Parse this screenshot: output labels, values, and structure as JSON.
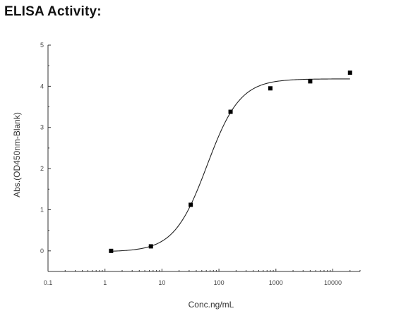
{
  "heading": "ELISA Activity:",
  "chart_data": {
    "type": "scatter",
    "title": "",
    "xlabel": "Conc.ng/mL",
    "ylabel": "Abs.(OD450nm-Blank)",
    "x_scale": "log",
    "xlim": [
      0.1,
      30000
    ],
    "ylim": [
      -0.5,
      5
    ],
    "x_ticks": [
      0.1,
      1,
      10,
      100,
      1000,
      10000
    ],
    "x_tick_labels": [
      "0.1",
      "1",
      "10",
      "100",
      "1000",
      "10000"
    ],
    "y_ticks": [
      0,
      1,
      2,
      3,
      4,
      5
    ],
    "y_tick_labels": [
      "0",
      "1",
      "2",
      "3",
      "4",
      "5"
    ],
    "grid": false,
    "series": [
      {
        "points": [
          {
            "x": 1.28,
            "y": 0.0
          },
          {
            "x": 6.4,
            "y": 0.11
          },
          {
            "x": 32,
            "y": 1.12
          },
          {
            "x": 160,
            "y": 3.38
          },
          {
            "x": 800,
            "y": 3.95
          },
          {
            "x": 4000,
            "y": 4.12
          },
          {
            "x": 20000,
            "y": 4.33
          }
        ],
        "fit": {
          "model": "4PL",
          "bottom": -0.02,
          "top": 4.18,
          "ec50": 62,
          "hill": 1.5,
          "x_range": [
            1.28,
            20000
          ]
        },
        "marker": "square",
        "color": "#000000"
      }
    ]
  }
}
